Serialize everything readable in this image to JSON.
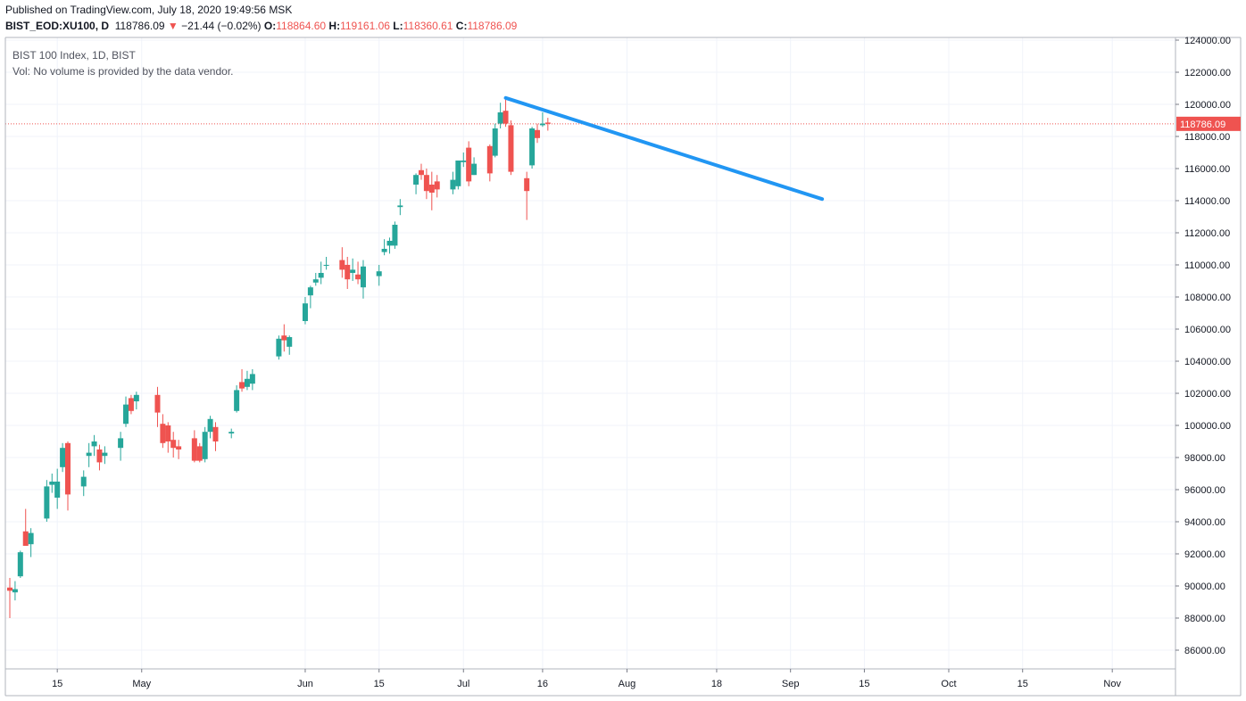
{
  "header": {
    "published": "Published on TradingView.com, July 18, 2020 19:49:56 MSK",
    "symbol": "BIST_EOD:XU100, D",
    "last": "118786.09",
    "arrow": "▼",
    "change": "−21.44 (−0.02%)",
    "o_label": "O:",
    "o_value": "118864.60",
    "h_label": "H:",
    "h_value": "119161.06",
    "l_label": "L:",
    "l_value": "118360.61",
    "c_label": "C:",
    "c_value": "118786.09"
  },
  "legend": {
    "title": "BIST 100 Index, 1D, BIST",
    "volume_note": "Vol: No volume is provided by the data vendor."
  },
  "colors": {
    "up": "#26a69a",
    "down": "#ef5350",
    "trendline": "#2196f3",
    "grid": "#f0f3fa",
    "price_line": "#ef5350"
  },
  "chart_data": {
    "type": "candlestick",
    "ylim": [
      84500,
      124500
    ],
    "y_ticks": [
      86000,
      88000,
      90000,
      92000,
      94000,
      96000,
      98000,
      100000,
      102000,
      104000,
      106000,
      108000,
      110000,
      112000,
      114000,
      116000,
      118000,
      120000,
      122000,
      124000
    ],
    "y_tick_labels": [
      "86000.00",
      "88000.00",
      "90000.00",
      "92000.00",
      "94000.00",
      "96000.00",
      "98000.00",
      "100000.00",
      "102000.00",
      "104000.00",
      "106000.00",
      "108000.00",
      "110000.00",
      "112000.00",
      "114000.00",
      "116000.00",
      "118000.00",
      "120000.00",
      "122000.00",
      "124000.00"
    ],
    "x_ticks": [
      "15",
      "May",
      "Jun",
      "15",
      "Jul",
      "16",
      "Aug",
      "18",
      "Sep",
      "15",
      "Oct",
      "15",
      "Nov"
    ],
    "last_price": 118786.09,
    "last_price_label": "118786.09",
    "candles": [
      {
        "date": "2020-04-06",
        "o": 89900,
        "h": 90500,
        "l": 88000,
        "c": 89700
      },
      {
        "date": "2020-04-07",
        "o": 89600,
        "h": 90300,
        "l": 89100,
        "c": 89800
      },
      {
        "date": "2020-04-08",
        "o": 90600,
        "h": 92200,
        "l": 90500,
        "c": 92100
      },
      {
        "date": "2020-04-09",
        "o": 93400,
        "h": 94800,
        "l": 92800,
        "c": 92500
      },
      {
        "date": "2020-04-10",
        "o": 92600,
        "h": 93600,
        "l": 91800,
        "c": 93300
      },
      {
        "date": "2020-04-13",
        "o": 94200,
        "h": 96600,
        "l": 94000,
        "c": 96200
      },
      {
        "date": "2020-04-14",
        "o": 96300,
        "h": 97000,
        "l": 95800,
        "c": 96500
      },
      {
        "date": "2020-04-15",
        "o": 95500,
        "h": 97300,
        "l": 94800,
        "c": 96500
      },
      {
        "date": "2020-04-16",
        "o": 97400,
        "h": 98900,
        "l": 97100,
        "c": 98600
      },
      {
        "date": "2020-04-17",
        "o": 98900,
        "h": 99000,
        "l": 94700,
        "c": 95700
      },
      {
        "date": "2020-04-20",
        "o": 96200,
        "h": 97200,
        "l": 95600,
        "c": 96800
      },
      {
        "date": "2020-04-21",
        "o": 98100,
        "h": 98900,
        "l": 97400,
        "c": 98300
      },
      {
        "date": "2020-04-22",
        "o": 98700,
        "h": 99400,
        "l": 98100,
        "c": 99000
      },
      {
        "date": "2020-04-23",
        "o": 98500,
        "h": 98800,
        "l": 97200,
        "c": 97700
      },
      {
        "date": "2020-04-24",
        "o": 98100,
        "h": 98700,
        "l": 97600,
        "c": 98300
      },
      {
        "date": "2020-04-27",
        "o": 98600,
        "h": 99600,
        "l": 97800,
        "c": 99200
      },
      {
        "date": "2020-04-28",
        "o": 100100,
        "h": 101800,
        "l": 99900,
        "c": 101300
      },
      {
        "date": "2020-04-29",
        "o": 101700,
        "h": 101900,
        "l": 100700,
        "c": 100900
      },
      {
        "date": "2020-04-30",
        "o": 101500,
        "h": 102100,
        "l": 101000,
        "c": 101900
      },
      {
        "date": "2020-05-04",
        "o": 101900,
        "h": 102400,
        "l": 99900,
        "c": 100800
      },
      {
        "date": "2020-05-05",
        "o": 100100,
        "h": 100700,
        "l": 98600,
        "c": 98900
      },
      {
        "date": "2020-05-06",
        "o": 100000,
        "h": 100200,
        "l": 98300,
        "c": 99000
      },
      {
        "date": "2020-05-07",
        "o": 99100,
        "h": 99600,
        "l": 98000,
        "c": 98600
      },
      {
        "date": "2020-05-08",
        "o": 98700,
        "h": 99100,
        "l": 97900,
        "c": 98500
      },
      {
        "date": "2020-05-11",
        "o": 99200,
        "h": 99700,
        "l": 97700,
        "c": 97800
      },
      {
        "date": "2020-05-12",
        "o": 98700,
        "h": 98900,
        "l": 97700,
        "c": 97800
      },
      {
        "date": "2020-05-13",
        "o": 97900,
        "h": 99900,
        "l": 97700,
        "c": 99600
      },
      {
        "date": "2020-05-14",
        "o": 99600,
        "h": 100600,
        "l": 99200,
        "c": 100400
      },
      {
        "date": "2020-05-15",
        "o": 99900,
        "h": 100200,
        "l": 98400,
        "c": 99000
      },
      {
        "date": "2020-05-18",
        "o": 99500,
        "h": 99800,
        "l": 99200,
        "c": 99600
      },
      {
        "date": "2020-05-19",
        "o": 100900,
        "h": 102500,
        "l": 100800,
        "c": 102200
      },
      {
        "date": "2020-05-20",
        "o": 102700,
        "h": 103500,
        "l": 102100,
        "c": 102300
      },
      {
        "date": "2020-05-21",
        "o": 102400,
        "h": 103400,
        "l": 102200,
        "c": 102900
      },
      {
        "date": "2020-05-22",
        "o": 102600,
        "h": 103500,
        "l": 102200,
        "c": 103200
      },
      {
        "date": "2020-05-27",
        "o": 104300,
        "h": 105600,
        "l": 104100,
        "c": 105400
      },
      {
        "date": "2020-05-28",
        "o": 105600,
        "h": 106300,
        "l": 104600,
        "c": 105300
      },
      {
        "date": "2020-05-29",
        "o": 104900,
        "h": 105600,
        "l": 104400,
        "c": 105500
      },
      {
        "date": "2020-06-01",
        "o": 106500,
        "h": 108000,
        "l": 106300,
        "c": 107600
      },
      {
        "date": "2020-06-02",
        "o": 108100,
        "h": 108700,
        "l": 107300,
        "c": 108600
      },
      {
        "date": "2020-06-03",
        "o": 108900,
        "h": 109500,
        "l": 108700,
        "c": 109100
      },
      {
        "date": "2020-06-04",
        "o": 109200,
        "h": 110200,
        "l": 108800,
        "c": 109500
      },
      {
        "date": "2020-06-05",
        "o": 110000,
        "h": 110500,
        "l": 109700,
        "c": 110000
      },
      {
        "date": "2020-06-08",
        "o": 110300,
        "h": 111100,
        "l": 109200,
        "c": 109700
      },
      {
        "date": "2020-06-09",
        "o": 110000,
        "h": 110500,
        "l": 108500,
        "c": 109100
      },
      {
        "date": "2020-06-10",
        "o": 109500,
        "h": 110400,
        "l": 109000,
        "c": 109700
      },
      {
        "date": "2020-06-11",
        "o": 109400,
        "h": 110200,
        "l": 108800,
        "c": 109100
      },
      {
        "date": "2020-06-12",
        "o": 108600,
        "h": 110300,
        "l": 107900,
        "c": 109900
      },
      {
        "date": "2020-06-15",
        "o": 109300,
        "h": 110000,
        "l": 108700,
        "c": 109600
      },
      {
        "date": "2020-06-16",
        "o": 110800,
        "h": 111600,
        "l": 110600,
        "c": 111000
      },
      {
        "date": "2020-06-17",
        "o": 111200,
        "h": 111700,
        "l": 110700,
        "c": 111500
      },
      {
        "date": "2020-06-18",
        "o": 111200,
        "h": 112700,
        "l": 111000,
        "c": 112500
      },
      {
        "date": "2020-06-19",
        "o": 113600,
        "h": 114100,
        "l": 113100,
        "c": 113700
      },
      {
        "date": "2020-06-22",
        "o": 115000,
        "h": 115700,
        "l": 114400,
        "c": 115600
      },
      {
        "date": "2020-06-23",
        "o": 115900,
        "h": 116300,
        "l": 115300,
        "c": 115600
      },
      {
        "date": "2020-06-24",
        "o": 115600,
        "h": 116000,
        "l": 114100,
        "c": 114600
      },
      {
        "date": "2020-06-25",
        "o": 115000,
        "h": 115800,
        "l": 113400,
        "c": 114500
      },
      {
        "date": "2020-06-26",
        "o": 115200,
        "h": 115600,
        "l": 114200,
        "c": 114700
      },
      {
        "date": "2020-06-29",
        "o": 114700,
        "h": 115800,
        "l": 114400,
        "c": 115300
      },
      {
        "date": "2020-06-30",
        "o": 114900,
        "h": 116500,
        "l": 114700,
        "c": 116500
      },
      {
        "date": "2020-07-01",
        "o": 116400,
        "h": 117000,
        "l": 116100,
        "c": 116500
      },
      {
        "date": "2020-07-02",
        "o": 117300,
        "h": 117700,
        "l": 114900,
        "c": 115200
      },
      {
        "date": "2020-07-03",
        "o": 115600,
        "h": 116700,
        "l": 115600,
        "c": 116300
      },
      {
        "date": "2020-07-06",
        "o": 117400,
        "h": 117500,
        "l": 115200,
        "c": 115700
      },
      {
        "date": "2020-07-07",
        "o": 116800,
        "h": 118800,
        "l": 116700,
        "c": 118500
      },
      {
        "date": "2020-07-08",
        "o": 118800,
        "h": 120100,
        "l": 118500,
        "c": 119500
      },
      {
        "date": "2020-07-09",
        "o": 119600,
        "h": 120300,
        "l": 118600,
        "c": 118800
      },
      {
        "date": "2020-07-10",
        "o": 118700,
        "h": 119000,
        "l": 115600,
        "c": 115800
      },
      {
        "date": "2020-07-13",
        "o": 115400,
        "h": 115800,
        "l": 112800,
        "c": 114600
      },
      {
        "date": "2020-07-14",
        "o": 116200,
        "h": 118600,
        "l": 116000,
        "c": 118500
      },
      {
        "date": "2020-07-15",
        "o": 118400,
        "h": 118800,
        "l": 117600,
        "c": 117900
      },
      {
        "date": "2020-07-16",
        "o": 118700,
        "h": 119500,
        "l": 118600,
        "c": 118800
      },
      {
        "date": "2020-07-17",
        "o": 118865,
        "h": 119161,
        "l": 118361,
        "c": 118786
      }
    ],
    "trendline": {
      "from": {
        "date": "2020-07-09",
        "value": 120400
      },
      "to": {
        "date": "2020-09-07",
        "value": 114100
      }
    }
  }
}
